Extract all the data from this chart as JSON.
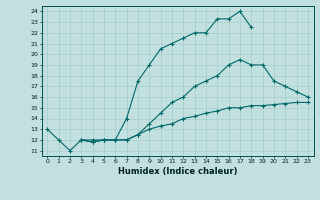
{
  "xlabel": "Humidex (Indice chaleur)",
  "background_color": "#c2e0e0",
  "grid_color": "#a8cccc",
  "line_color": "#006868",
  "xlim": [
    -0.5,
    23.5
  ],
  "ylim": [
    10.5,
    24.5
  ],
  "xticks": [
    0,
    1,
    2,
    3,
    4,
    5,
    6,
    7,
    8,
    9,
    10,
    11,
    12,
    13,
    14,
    15,
    16,
    17,
    18,
    19,
    20,
    21,
    22,
    23
  ],
  "yticks": [
    11,
    12,
    13,
    14,
    15,
    16,
    17,
    18,
    19,
    20,
    21,
    22,
    23,
    24
  ],
  "lines": [
    {
      "x": [
        0,
        1,
        2,
        3,
        4,
        5,
        6,
        7,
        8,
        9,
        10,
        11,
        12,
        13,
        14,
        15,
        16,
        17,
        18
      ],
      "y": [
        13,
        12,
        11,
        12,
        12,
        12,
        12,
        14,
        17.5,
        19,
        20.5,
        21,
        21.5,
        22,
        22,
        23.3,
        23.3,
        24,
        22.5
      ]
    },
    {
      "x": [
        3,
        4,
        5,
        6,
        7,
        8,
        9,
        10,
        11,
        12,
        13,
        14,
        15,
        16,
        17,
        18,
        19,
        20,
        21,
        22,
        23
      ],
      "y": [
        12,
        11.8,
        12,
        12,
        12,
        12.5,
        13.5,
        14.5,
        15.5,
        16,
        17,
        17.5,
        18,
        19,
        19.5,
        19,
        19,
        17.5,
        17,
        16.5,
        16.0
      ]
    },
    {
      "x": [
        3,
        4,
        5,
        6,
        7,
        8,
        9,
        10,
        11,
        12,
        13,
        14,
        15,
        16,
        17,
        18,
        19,
        20,
        21,
        22,
        23
      ],
      "y": [
        12,
        11.8,
        12,
        12,
        12,
        12.5,
        13,
        13.3,
        13.5,
        14,
        14.2,
        14.5,
        14.7,
        15,
        15,
        15.2,
        15.2,
        15.3,
        15.4,
        15.5,
        15.5
      ]
    }
  ]
}
